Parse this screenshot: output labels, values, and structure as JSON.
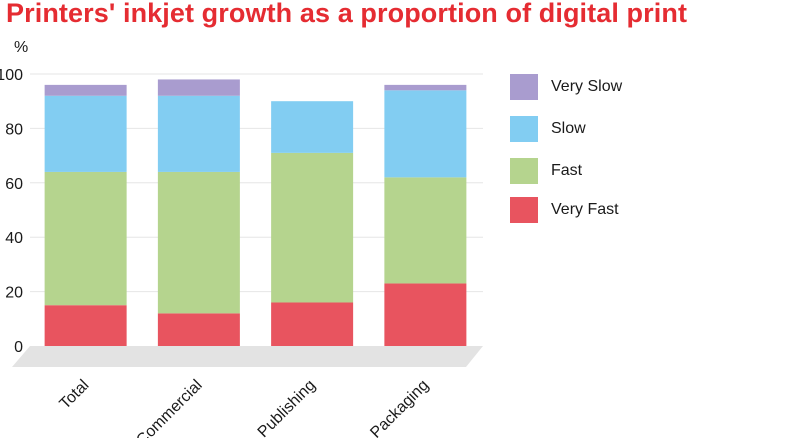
{
  "title": "Printers' inkjet growth as a proportion of digital print",
  "chart_data": {
    "type": "bar",
    "stacked": true,
    "title": "Printers' inkjet growth as a proportion of digital print",
    "ylabel": "%",
    "xlabel": "",
    "ylim": [
      0,
      100
    ],
    "yticks": [
      0,
      20,
      40,
      60,
      80,
      100
    ],
    "grid": true,
    "legend_position": "right",
    "categories": [
      "Total",
      "Commercial",
      "Publishing",
      "Packaging"
    ],
    "series": [
      {
        "name": "Very Fast",
        "color": "#e8545f",
        "values": [
          15,
          12,
          16,
          23
        ]
      },
      {
        "name": "Fast",
        "color": "#b5d48e",
        "values": [
          49,
          52,
          55,
          39
        ]
      },
      {
        "name": "Slow",
        "color": "#82cdf2",
        "values": [
          28,
          28,
          19,
          32
        ]
      },
      {
        "name": "Very Slow",
        "color": "#a99ccf",
        "values": [
          4,
          6,
          0,
          2
        ]
      }
    ]
  }
}
